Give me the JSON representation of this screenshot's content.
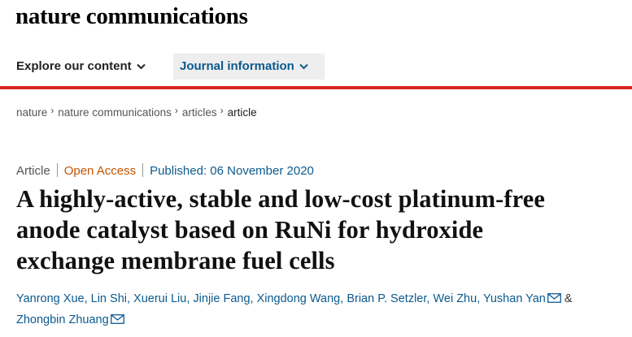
{
  "header": {
    "logo": "nature communications"
  },
  "nav": {
    "items": [
      "Explore our content",
      "Journal information"
    ]
  },
  "breadcrumb": [
    "nature",
    "nature communications",
    "articles",
    "article"
  ],
  "article": {
    "type": "Article",
    "access": "Open Access",
    "published": "Published: 06 November 2020",
    "title_lines": [
      "A highly-active, stable and low-cost platinum-free",
      "anode catalyst based on RuNi for hydroxide",
      "exchange membrane fuel cells"
    ],
    "authors": [
      "Yanrong Xue",
      "Lin Shi",
      "Xuerui Liu",
      "Jinjie Fang",
      "Xingdong Wang",
      "Brian P. Setzler",
      "Wei Zhu",
      "Yushan Yan",
      "Zhongbin Zhuang"
    ],
    "author_separator": ",",
    "author_conjunction": "&"
  }
}
